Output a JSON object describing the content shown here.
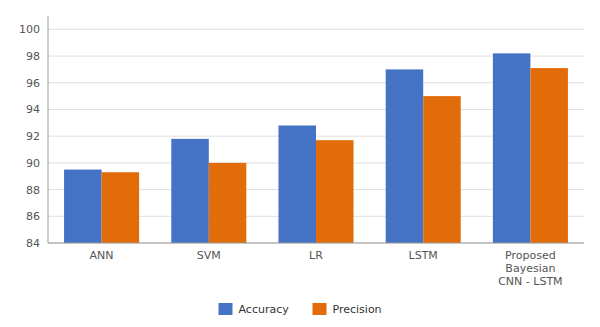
{
  "chart_data": {
    "type": "bar",
    "categories": [
      "ANN",
      "SVM",
      "LR",
      "LSTM",
      "Proposed\nBayesian\nCNN - LSTM"
    ],
    "series": [
      {
        "name": "Accuracy",
        "color": "#4472C4",
        "values": [
          89.5,
          91.8,
          92.8,
          97.0,
          98.2
        ]
      },
      {
        "name": "Precision",
        "color": "#E36C0A",
        "values": [
          89.3,
          90.0,
          91.7,
          95.0,
          97.1
        ]
      }
    ],
    "ylim": [
      84,
      101
    ],
    "yticks": [
      84,
      86,
      88,
      90,
      92,
      94,
      96,
      98,
      100
    ],
    "grid": true,
    "legend": "bottom"
  }
}
